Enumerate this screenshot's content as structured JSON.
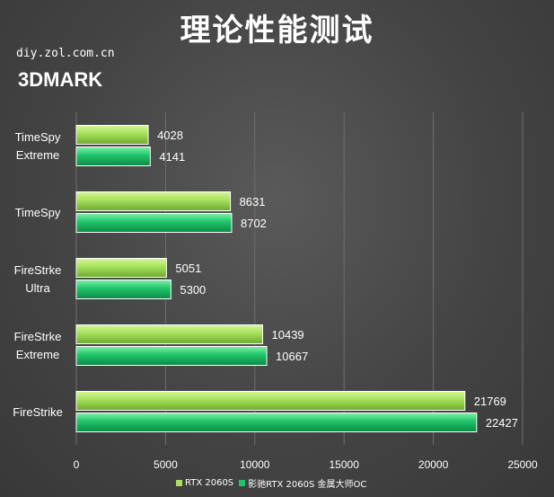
{
  "header": {
    "title": "理论性能测试",
    "source": "diy.zol.com.cn",
    "benchmark": "3DMARK"
  },
  "colors": {
    "series_0": "#a5e05a",
    "series_1": "#1fc46a",
    "background": "#4a4a4a"
  },
  "chart_data": {
    "type": "bar",
    "orientation": "horizontal",
    "categories": [
      "TimeSpy\nExtreme",
      "TimeSpy",
      "FireStrke\nUltra",
      "FireStrke\nExtreme",
      "FireStrike"
    ],
    "series": [
      {
        "name": "RTX 2060S",
        "values": [
          4028,
          8631,
          5051,
          10439,
          21769
        ]
      },
      {
        "name": "影驰RTX 2060S 金属大师OC",
        "values": [
          4141,
          8702,
          5300,
          10667,
          22427
        ]
      }
    ],
    "xlim": [
      0,
      25000
    ],
    "xticks": [
      "0",
      "5000",
      "10000",
      "15000",
      "20000",
      "25000"
    ],
    "grid": true,
    "legend_position": "bottom"
  }
}
